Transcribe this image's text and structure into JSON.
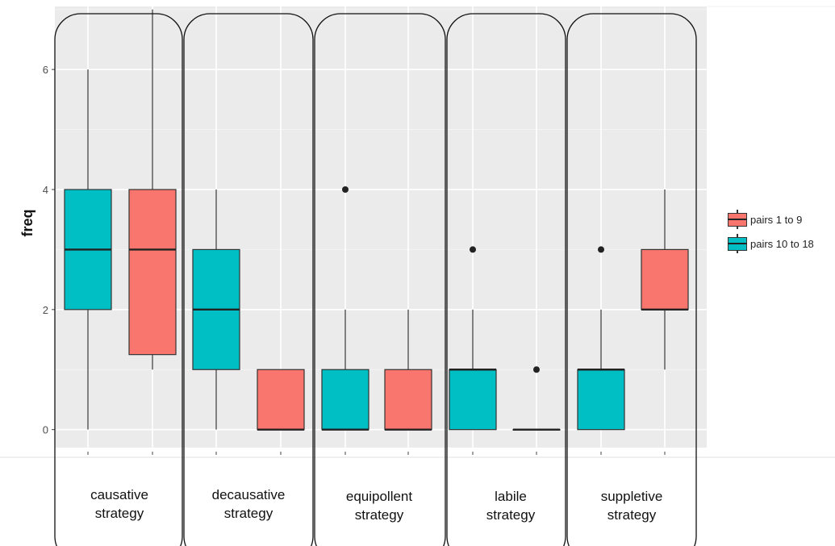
{
  "chart_data": {
    "type": "boxplot",
    "ylabel": "freq",
    "xlabel": "",
    "ylim": [
      -0.3,
      7.05
    ],
    "yticks": [
      0,
      2,
      4,
      6
    ],
    "grid": true,
    "legend_position": "right",
    "categories": [
      [
        "causative",
        "strategy"
      ],
      [
        "decausative",
        "strategy"
      ],
      [
        "equipollent",
        "strategy"
      ],
      [
        "labile",
        "strategy"
      ],
      [
        "suppletive",
        "strategy"
      ]
    ],
    "series": [
      {
        "name": "pairs 10 to 18",
        "color": "#00BFC4",
        "boxes": [
          {
            "min": 0,
            "q1": 2,
            "median": 3,
            "q3": 4,
            "max": 6,
            "outliers": []
          },
          {
            "min": 0,
            "q1": 1,
            "median": 2,
            "q3": 3,
            "max": 4,
            "outliers": []
          },
          {
            "min": 0,
            "q1": 0,
            "median": 0,
            "q3": 1,
            "max": 2,
            "outliers": [
              4
            ]
          },
          {
            "min": 0,
            "q1": 0,
            "median": 1,
            "q3": 1,
            "max": 2,
            "outliers": [
              3
            ]
          },
          {
            "min": 0,
            "q1": 0,
            "median": 1,
            "q3": 1,
            "max": 2,
            "outliers": [
              3
            ]
          }
        ]
      },
      {
        "name": "pairs 1 to 9",
        "color": "#F8766D",
        "boxes": [
          {
            "min": 1,
            "q1": 1.25,
            "median": 3,
            "q3": 4,
            "max": 7,
            "outliers": []
          },
          {
            "min": 0,
            "q1": 0,
            "median": 0,
            "q3": 1,
            "max": 1,
            "outliers": []
          },
          {
            "min": 0,
            "q1": 0,
            "median": 0,
            "q3": 1,
            "max": 2,
            "outliers": []
          },
          {
            "min": 0,
            "q1": 0,
            "median": 0,
            "q3": 0,
            "max": 0,
            "outliers": [
              1
            ]
          },
          {
            "min": 1,
            "q1": 2,
            "median": 2,
            "q3": 3,
            "max": 4,
            "outliers": []
          }
        ]
      }
    ],
    "legend": [
      "pairs 1 to 9",
      "pairs 10 to 18"
    ]
  },
  "labels": {
    "ylabel": "freq",
    "ticks": [
      "0",
      "2",
      "4",
      "6"
    ],
    "strategies": [
      {
        "line1": "causative",
        "line2": "strategy"
      },
      {
        "line1": "decausative",
        "line2": "strategy"
      },
      {
        "line1": "equipollent",
        "line2": "strategy"
      },
      {
        "line1": "labile",
        "line2": "strategy"
      },
      {
        "line1": "suppletive",
        "line2": "strategy"
      }
    ],
    "legend": [
      {
        "text": "pairs 1 to 9",
        "color": "#F8766D"
      },
      {
        "text": "pairs 10 to 18",
        "color": "#00BFC4"
      }
    ]
  }
}
